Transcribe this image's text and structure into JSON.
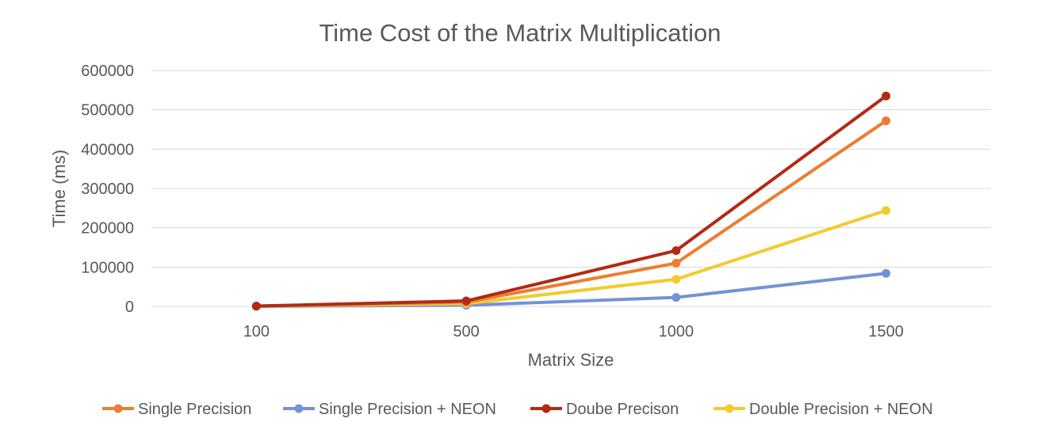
{
  "chart_data": {
    "type": "line",
    "title": "Time Cost of the Matrix Multiplication",
    "xlabel": "Matrix Size",
    "ylabel": "Time (ms)",
    "categories": [
      "100",
      "500",
      "1000",
      "1500"
    ],
    "ylim": [
      0,
      600000
    ],
    "yticks": [
      "0",
      "100000",
      "200000",
      "300000",
      "400000",
      "500000",
      "600000"
    ],
    "grid": true,
    "legend_position": "bottom",
    "series": [
      {
        "name": "Single Precision",
        "color": "#ED7D31",
        "values": [
          800,
          11000,
          110000,
          472000
        ]
      },
      {
        "name": "Single Precision + NEON",
        "color": "#7393D6",
        "values": [
          200,
          3000,
          23000,
          84000
        ]
      },
      {
        "name": "Doube Precison",
        "color": "#B22A14",
        "values": [
          1000,
          14000,
          142000,
          535000
        ]
      },
      {
        "name": "Double Precision + NEON",
        "color": "#F2CB2F",
        "values": [
          500,
          7000,
          69000,
          244000
        ]
      }
    ]
  }
}
